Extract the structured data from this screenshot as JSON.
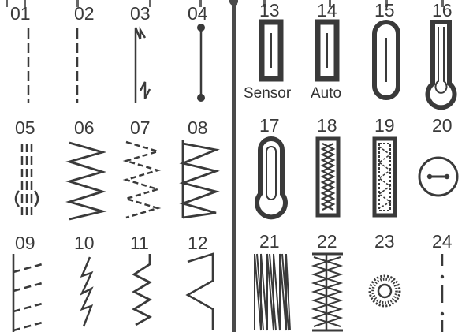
{
  "title": "",
  "stitch_numbers": [
    "01",
    "02",
    "03",
    "04",
    "05",
    "06",
    "07",
    "08",
    "09",
    "10",
    "11",
    "12",
    "13",
    "14",
    "15",
    "16",
    "17",
    "18",
    "19",
    "20",
    "21",
    "22",
    "23",
    "24"
  ],
  "sublabels": {
    "13": "Sensor",
    "14": "Auto"
  },
  "icons": {
    "01": "straight-stitch-left-icon",
    "02": "straight-stitch-center-icon",
    "03": "triple-stretch-stitch-icon",
    "04": "tacking-stitch-icon",
    "05": "darning-stitch-icon",
    "06": "zigzag-stitch-icon",
    "07": "three-step-zigzag-icon",
    "08": "overlock-stitch-icon",
    "09": "blind-hem-stitch-icon",
    "10": "stretch-stitch-icon",
    "11": "rick-rack-stitch-icon",
    "12": "blanket-stitch-icon",
    "13": "buttonhole-sensor-icon",
    "14": "buttonhole-auto-icon",
    "15": "rounded-buttonhole-icon",
    "16": "keyhole-buttonhole-icon",
    "17": "keyhole-buttonhole-icon",
    "18": "decorative-zigzag-band-icon",
    "19": "decorative-dotted-band-icon",
    "20": "button-sewing-icon",
    "21": "fagoting-stitch-icon",
    "22": "feather-stitch-icon",
    "23": "eyelet-icon",
    "24": "basting-stitch-icon"
  }
}
